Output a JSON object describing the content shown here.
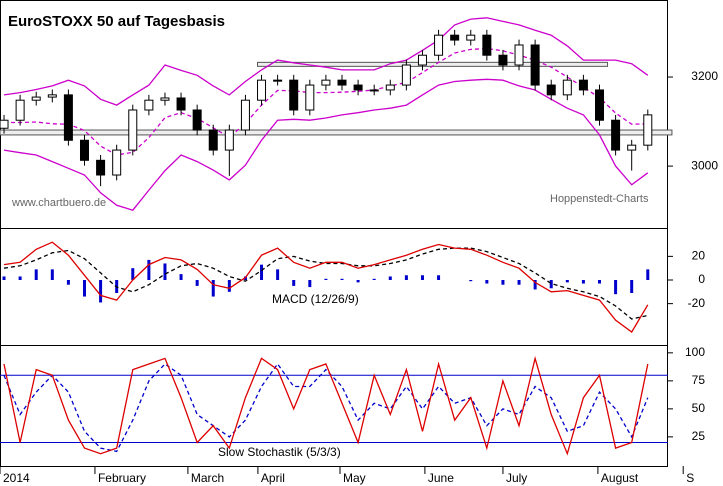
{
  "chart_data": [
    {
      "type": "candlestick",
      "title": "EuroSTOXX 50 auf Tagesbasis",
      "annotations": [
        "www.chartbuero.de",
        "Hoppenstedt-Charts"
      ],
      "xlim": [
        0,
        170
      ],
      "x": [
        1,
        5,
        9,
        13,
        17,
        21,
        25,
        29,
        33,
        37,
        41,
        45,
        49,
        53,
        57,
        61,
        65,
        69,
        73,
        77,
        81,
        85,
        89,
        93,
        97,
        101,
        105,
        109,
        113,
        117,
        121,
        125,
        129,
        133,
        137,
        141,
        145,
        149,
        153,
        157,
        161
      ],
      "open": [
        3085,
        3103,
        3148,
        3155,
        3160,
        3058,
        3013,
        2980,
        3036,
        3126,
        3148,
        3153,
        3126,
        3081,
        3036,
        3081,
        3148,
        3193,
        3193,
        3126,
        3182,
        3193,
        3182,
        3171,
        3171,
        3182,
        3227,
        3249,
        3294,
        3283,
        3294,
        3249,
        3227,
        3272,
        3182,
        3160,
        3193,
        3171,
        3103,
        3036,
        3047
      ],
      "high": [
        3115,
        3160,
        3167,
        3172,
        3172,
        3070,
        3025,
        3048,
        3138,
        3160,
        3165,
        3165,
        3138,
        3093,
        3093,
        3160,
        3205,
        3205,
        3205,
        3194,
        3205,
        3205,
        3194,
        3183,
        3194,
        3239,
        3261,
        3306,
        3306,
        3306,
        3306,
        3261,
        3284,
        3284,
        3194,
        3205,
        3205,
        3183,
        3115,
        3059,
        3127
      ],
      "low": [
        3073,
        3091,
        3136,
        3143,
        3046,
        3001,
        2955,
        2968,
        3024,
        3114,
        3136,
        3114,
        3069,
        3024,
        2978,
        3069,
        3136,
        3181,
        3114,
        3114,
        3170,
        3170,
        3159,
        3159,
        3159,
        3170,
        3215,
        3237,
        3271,
        3271,
        3237,
        3215,
        3215,
        3170,
        3148,
        3148,
        3159,
        3091,
        3024,
        2990,
        3035
      ],
      "close": [
        3103,
        3148,
        3155,
        3160,
        3058,
        3013,
        2980,
        3036,
        3126,
        3148,
        3153,
        3126,
        3081,
        3036,
        3081,
        3148,
        3193,
        3193,
        3126,
        3182,
        3193,
        3182,
        3171,
        3171,
        3182,
        3227,
        3249,
        3294,
        3283,
        3294,
        3249,
        3227,
        3272,
        3182,
        3160,
        3193,
        3171,
        3103,
        3036,
        3047,
        3115
      ],
      "up_color": "#ffffff",
      "down_color": "#000000",
      "series": [
        {
          "color": "#cc00cc",
          "dash": false,
          "values": [
            3160,
            3165,
            3172,
            3180,
            3193,
            3180,
            3150,
            3137,
            3160,
            3182,
            3227,
            3215,
            3204,
            3180,
            3160,
            3190,
            3216,
            3238,
            3232,
            3227,
            3222,
            3216,
            3216,
            3216,
            3230,
            3238,
            3260,
            3283,
            3317,
            3330,
            3333,
            3325,
            3317,
            3305,
            3294,
            3270,
            3238,
            3238,
            3238,
            3230,
            3204
          ]
        },
        {
          "color": "#cc00cc",
          "dash": true,
          "values": [
            3098,
            3098,
            3099,
            3095,
            3094,
            3080,
            3045,
            3025,
            3031,
            3064,
            3109,
            3120,
            3107,
            3086,
            3065,
            3096,
            3137,
            3170,
            3169,
            3165,
            3165,
            3166,
            3168,
            3171,
            3180,
            3188,
            3210,
            3233,
            3254,
            3262,
            3264,
            3259,
            3249,
            3238,
            3222,
            3200,
            3177,
            3154,
            3119,
            3094,
            3095
          ]
        },
        {
          "color": "#cc00cc",
          "dash": false,
          "values": [
            3036,
            3030,
            3025,
            3010,
            2995,
            2980,
            2940,
            2912,
            2901,
            2946,
            2990,
            3025,
            3010,
            2991,
            2969,
            3002,
            3058,
            3103,
            3105,
            3103,
            3108,
            3115,
            3120,
            3126,
            3130,
            3137,
            3160,
            3182,
            3190,
            3193,
            3195,
            3193,
            3180,
            3171,
            3150,
            3130,
            3115,
            3070,
            3000,
            2958,
            2985
          ]
        }
      ],
      "levels": [
        {
          "x": [
            64,
            151
          ],
          "y": [
            3224,
            3233
          ]
        },
        {
          "x": [
            0,
            167
          ],
          "y": [
            3070,
            3081
          ]
        }
      ],
      "ylim": [
        2861,
        3373
      ],
      "yticks": [
        3000,
        3200
      ]
    },
    {
      "type": "macd",
      "label": "MACD (12/26/9)",
      "xlim": [
        0,
        170
      ],
      "x": [
        1,
        5,
        9,
        13,
        17,
        21,
        25,
        29,
        33,
        37,
        41,
        45,
        49,
        53,
        57,
        61,
        65,
        69,
        73,
        77,
        81,
        85,
        89,
        93,
        97,
        101,
        105,
        109,
        113,
        117,
        121,
        125,
        129,
        133,
        137,
        141,
        145,
        149,
        153,
        157,
        161
      ],
      "series": [
        {
          "kind": "bar",
          "color": "#0000cc",
          "values": [
            3,
            3,
            9,
            9,
            -4,
            -14,
            -19,
            -11,
            10,
            17,
            14,
            5,
            -5,
            -14,
            -10,
            3,
            13,
            9,
            -5,
            -6,
            1,
            1,
            -2,
            1,
            3,
            4,
            4,
            4,
            0,
            -1,
            -3,
            -4,
            -4,
            -8,
            -7,
            -2,
            -3,
            -3,
            -12,
            -11,
            9
          ]
        },
        {
          "kind": "line",
          "color": "#000000",
          "dash": true,
          "values": [
            10,
            12,
            17,
            23,
            25,
            18,
            6,
            -6,
            -10,
            -4,
            5,
            12,
            14,
            10,
            3,
            -1,
            8,
            18,
            20,
            16,
            14,
            14,
            12,
            12,
            14,
            17,
            22,
            26,
            27,
            27,
            24,
            19,
            14,
            6,
            -3,
            -7,
            -10,
            -14,
            -22,
            -33,
            -30
          ]
        },
        {
          "kind": "line",
          "color": "#dd0000",
          "dash": false,
          "values": [
            13,
            15,
            26,
            32,
            21,
            4,
            -13,
            -17,
            0,
            13,
            19,
            17,
            9,
            -4,
            -7,
            2,
            21,
            27,
            15,
            10,
            15,
            15,
            10,
            13,
            17,
            21,
            26,
            30,
            27,
            26,
            21,
            15,
            10,
            -2,
            -10,
            -9,
            -13,
            -17,
            -34,
            -44,
            -21
          ]
        }
      ],
      "ylim": [
        -55,
        44
      ],
      "yticks": [
        -20,
        0,
        20
      ]
    },
    {
      "type": "stochastic",
      "label": "Slow Stochastik (5/3/3)",
      "xlim": [
        0,
        170
      ],
      "x": [
        1,
        5,
        9,
        13,
        17,
        21,
        25,
        29,
        33,
        37,
        41,
        45,
        49,
        53,
        57,
        61,
        65,
        69,
        73,
        77,
        81,
        85,
        89,
        93,
        97,
        101,
        105,
        109,
        113,
        117,
        121,
        125,
        129,
        133,
        137,
        141,
        145,
        149,
        153,
        157,
        161
      ],
      "series": [
        {
          "color": "#0000cc",
          "dash": true,
          "values": [
            80,
            45,
            65,
            80,
            65,
            30,
            15,
            12,
            40,
            75,
            90,
            80,
            45,
            35,
            25,
            40,
            70,
            90,
            70,
            70,
            85,
            70,
            40,
            55,
            50,
            70,
            50,
            70,
            55,
            60,
            35,
            50,
            45,
            70,
            60,
            30,
            35,
            65,
            50,
            25,
            60
          ]
        },
        {
          "color": "#dd0000",
          "dash": false,
          "values": [
            90,
            20,
            85,
            80,
            40,
            15,
            10,
            15,
            85,
            90,
            95,
            60,
            20,
            35,
            15,
            60,
            95,
            85,
            50,
            85,
            90,
            55,
            20,
            80,
            45,
            85,
            30,
            90,
            40,
            60,
            15,
            75,
            35,
            95,
            45,
            10,
            60,
            80,
            15,
            20,
            90
          ]
        }
      ],
      "hlines": [
        20,
        80
      ],
      "hline_color": "#0000cc",
      "ylim": [
        -1,
        107
      ],
      "yticks": [
        25,
        50,
        75,
        100
      ],
      "xticks": [
        {
          "value": 0,
          "label": "2014"
        },
        {
          "value": 23.6,
          "label": "February"
        },
        {
          "value": 46.7,
          "label": "March"
        },
        {
          "value": 64.1,
          "label": "April"
        },
        {
          "value": 84.5,
          "label": "May"
        },
        {
          "value": 105.6,
          "label": "June"
        },
        {
          "value": 125,
          "label": "July"
        },
        {
          "value": 148.6,
          "label": "August"
        },
        {
          "value": 169.8,
          "label": "S"
        }
      ]
    }
  ]
}
